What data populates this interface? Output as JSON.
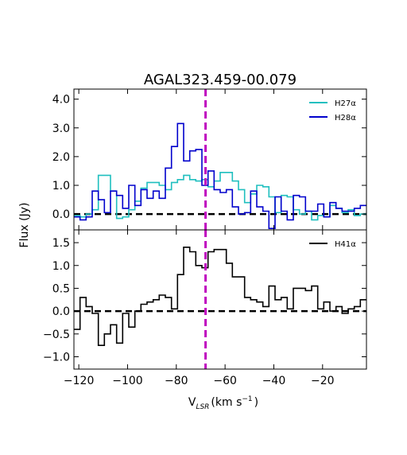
{
  "chart_data": {
    "type": "line",
    "title": "AGAL323.459-00.079",
    "xlabel": "V",
    "xlabel_sub": "LSR",
    "xlabel_unit": "(km s",
    "xlabel_sup": "−1",
    "xlabel_close": ")",
    "ylabel": "Flux (Jy)",
    "xlim": [
      -122,
      -2
    ],
    "vline_x": -68,
    "x_tick_labels": [
      "−120",
      "−100",
      "−80",
      "−60",
      "−40",
      "−20"
    ],
    "x_ticks": [
      -120,
      -100,
      -80,
      -60,
      -40,
      -20
    ],
    "panels": [
      {
        "name": "top",
        "ylim": [
          -0.55,
          4.35
        ],
        "y_ticks": [
          0,
          1,
          2,
          3,
          4
        ],
        "y_tick_labels": [
          "0.0",
          "1.0",
          "2.0",
          "3.0",
          "4.0"
        ],
        "legend_position": "top-right",
        "series": [
          {
            "name": "H27α",
            "color": "#1fbfbf",
            "x": [
              -122,
              -119.5,
              -117,
              -114.5,
              -112,
              -109.5,
              -107,
              -104.5,
              -102,
              -99.5,
              -97,
              -94.5,
              -92,
              -89.5,
              -87,
              -84.5,
              -82,
              -79.5,
              -77,
              -74.5,
              -72,
              -69.5,
              -67,
              -64.5,
              -62,
              -59.5,
              -57,
              -54.5,
              -52,
              -49.5,
              -47,
              -44.5,
              -42,
              -39.5,
              -37,
              -34.5,
              -32,
              -29.5,
              -27,
              -24.5,
              -22,
              -19.5,
              -17,
              -14.5,
              -12,
              -9.5,
              -7,
              -4.5
            ],
            "y": [
              -0.05,
              -0.1,
              0.0,
              0.15,
              1.35,
              1.35,
              0.8,
              -0.15,
              -0.1,
              0.15,
              0.45,
              0.9,
              1.1,
              1.1,
              1.0,
              0.85,
              1.1,
              1.2,
              1.35,
              1.2,
              1.15,
              1.2,
              0.95,
              1.15,
              1.45,
              1.45,
              1.15,
              0.85,
              0.4,
              0.7,
              1.0,
              0.95,
              0.6,
              0.05,
              0.65,
              0.6,
              0.15,
              0.0,
              0.1,
              -0.2,
              -0.05,
              -0.1,
              0.3,
              0.2,
              0.05,
              0.15,
              -0.05,
              0.0
            ]
          },
          {
            "name": "H28α",
            "color": "#0000cc",
            "x": [
              -122,
              -119.5,
              -117,
              -114.5,
              -112,
              -109.5,
              -107,
              -104.5,
              -102,
              -99.5,
              -97,
              -94.5,
              -92,
              -89.5,
              -87,
              -84.5,
              -82,
              -79.5,
              -77,
              -74.5,
              -72,
              -69.5,
              -67,
              -64.5,
              -62,
              -59.5,
              -57,
              -54.5,
              -52,
              -49.5,
              -47,
              -44.5,
              -42,
              -39.5,
              -37,
              -34.5,
              -32,
              -29.5,
              -27,
              -24.5,
              -22,
              -19.5,
              -17,
              -14.5,
              -12,
              -9.5,
              -7,
              -4.5
            ],
            "y": [
              -0.1,
              -0.2,
              -0.1,
              0.8,
              0.5,
              0.05,
              0.8,
              0.65,
              0.2,
              1.0,
              0.3,
              0.85,
              0.55,
              0.8,
              0.55,
              1.6,
              2.35,
              3.15,
              1.85,
              2.2,
              2.25,
              1.0,
              1.5,
              0.85,
              0.75,
              0.85,
              0.25,
              0.0,
              0.05,
              0.8,
              0.25,
              0.1,
              -0.5,
              0.6,
              0.1,
              -0.2,
              0.65,
              0.6,
              0.1,
              0.1,
              0.35,
              -0.1,
              0.4,
              0.2,
              0.1,
              0.1,
              0.2,
              0.3
            ]
          }
        ]
      },
      {
        "name": "bottom",
        "ylim": [
          -1.27,
          1.78
        ],
        "y_ticks": [
          -1,
          -0.5,
          0,
          0.5,
          1,
          1.5
        ],
        "y_tick_labels": [
          "−1.0",
          "−0.5",
          "0.0",
          "0.5",
          "1.0",
          "1.5"
        ],
        "legend_position": "top-right",
        "series": [
          {
            "name": "H41α",
            "color": "#000000",
            "x": [
              -122,
              -119.5,
              -117,
              -114.5,
              -112,
              -109.5,
              -107,
              -104.5,
              -102,
              -99.5,
              -97,
              -94.5,
              -92,
              -89.5,
              -87,
              -84.5,
              -82,
              -79.5,
              -77,
              -74.5,
              -72,
              -69.5,
              -67,
              -64.5,
              -62,
              -59.5,
              -57,
              -54.5,
              -52,
              -49.5,
              -47,
              -44.5,
              -42,
              -39.5,
              -37,
              -34.5,
              -32,
              -29.5,
              -27,
              -24.5,
              -22,
              -19.5,
              -17,
              -14.5,
              -12,
              -9.5,
              -7,
              -4.5
            ],
            "y": [
              -0.4,
              0.3,
              0.1,
              -0.05,
              -0.75,
              -0.5,
              -0.3,
              -0.7,
              -0.05,
              -0.35,
              0.0,
              0.15,
              0.2,
              0.25,
              0.35,
              0.3,
              0.05,
              0.8,
              1.4,
              1.3,
              1.0,
              0.95,
              1.3,
              1.35,
              1.35,
              1.05,
              0.75,
              0.75,
              0.3,
              0.25,
              0.2,
              0.1,
              0.55,
              0.25,
              0.3,
              0.05,
              0.5,
              0.5,
              0.45,
              0.55,
              0.05,
              0.2,
              0.0,
              0.1,
              -0.05,
              0.05,
              0.1,
              0.25
            ]
          }
        ]
      }
    ]
  }
}
